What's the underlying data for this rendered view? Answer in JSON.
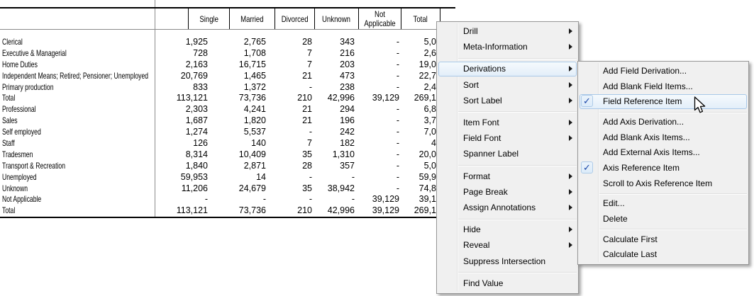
{
  "table": {
    "columns": [
      "Single",
      "Married",
      "Divorced",
      "Unknown",
      "Not Applicable",
      "Total"
    ],
    "rows": [
      {
        "label": "Clerical",
        "values": [
          "1,925",
          "2,765",
          "28",
          "343",
          "-",
          "5,0"
        ]
      },
      {
        "label": "Executive & Managerial",
        "values": [
          "728",
          "1,708",
          "7",
          "216",
          "-",
          "2,6"
        ]
      },
      {
        "label": "Home Duties",
        "values": [
          "2,163",
          "16,715",
          "7",
          "203",
          "-",
          "19,0"
        ]
      },
      {
        "label": "Independent Means; Retired; Pensioner; Unemployed",
        "values": [
          "20,769",
          "1,465",
          "21",
          "473",
          "-",
          "22,7"
        ]
      },
      {
        "label": "Primary production",
        "values": [
          "833",
          "1,372",
          "-",
          "238",
          "-",
          "2,4"
        ]
      },
      {
        "label": "Total",
        "values": [
          "113,121",
          "73,736",
          "210",
          "42,996",
          "39,129",
          "269,1"
        ]
      },
      {
        "label": "Professional",
        "values": [
          "2,303",
          "4,241",
          "21",
          "294",
          "-",
          "6,8"
        ]
      },
      {
        "label": "Sales",
        "values": [
          "1,687",
          "1,820",
          "21",
          "196",
          "-",
          "3,7"
        ]
      },
      {
        "label": "Self employed",
        "values": [
          "1,274",
          "5,537",
          "-",
          "242",
          "-",
          "7,0"
        ]
      },
      {
        "label": "Staff",
        "values": [
          "126",
          "140",
          "7",
          "182",
          "-",
          "4"
        ]
      },
      {
        "label": "Tradesmen",
        "values": [
          "8,314",
          "10,409",
          "35",
          "1,310",
          "-",
          "20,0"
        ]
      },
      {
        "label": "Transport & Recreation",
        "values": [
          "1,840",
          "2,871",
          "28",
          "357",
          "-",
          "5,0"
        ]
      },
      {
        "label": "Unemployed",
        "values": [
          "59,953",
          "14",
          "-",
          "-",
          "-",
          "59,9"
        ]
      },
      {
        "label": "Unknown",
        "values": [
          "11,206",
          "24,679",
          "35",
          "38,942",
          "-",
          "74,8"
        ]
      },
      {
        "label": "Not Applicable",
        "values": [
          "-",
          "-",
          "-",
          "-",
          "39,129",
          "39,1"
        ]
      },
      {
        "label": "Total",
        "values": [
          "113,121",
          "73,736",
          "210",
          "42,996",
          "39,129",
          "269,1"
        ]
      }
    ]
  },
  "context_menu": {
    "items": [
      {
        "label": "Drill",
        "submenu": true
      },
      {
        "label": "Meta-Information",
        "submenu": true
      },
      {
        "type": "separator"
      },
      {
        "label": "Derivations",
        "submenu": true,
        "highlighted": true
      },
      {
        "label": "Sort",
        "submenu": true
      },
      {
        "label": "Sort Label",
        "submenu": true
      },
      {
        "type": "separator"
      },
      {
        "label": "Item Font",
        "submenu": true
      },
      {
        "label": "Field Font",
        "submenu": true
      },
      {
        "label": "Spanner Label"
      },
      {
        "type": "separator"
      },
      {
        "label": "Format",
        "submenu": true
      },
      {
        "label": "Page Break",
        "submenu": true
      },
      {
        "label": "Assign Annotations",
        "submenu": true
      },
      {
        "type": "separator"
      },
      {
        "label": "Hide",
        "submenu": true
      },
      {
        "label": "Reveal",
        "submenu": true
      },
      {
        "label": "Suppress Intersection"
      },
      {
        "type": "separator"
      },
      {
        "label": "Find Value"
      }
    ]
  },
  "submenu": {
    "items": [
      {
        "label": "Add Field Derivation..."
      },
      {
        "label": "Add Blank Field Items..."
      },
      {
        "label": "Field Reference Item",
        "checked": true,
        "highlighted": true
      },
      {
        "type": "separator"
      },
      {
        "label": "Add Axis Derivation..."
      },
      {
        "label": "Add Blank Axis Items..."
      },
      {
        "label": "Add External Axis Items..."
      },
      {
        "label": "Axis Reference Item",
        "checked": true
      },
      {
        "label": "Scroll to Axis Reference Item"
      },
      {
        "type": "separator"
      },
      {
        "label": "Edit..."
      },
      {
        "label": "Delete"
      },
      {
        "type": "separator"
      },
      {
        "label": "Calculate First"
      },
      {
        "label": "Calculate Last"
      }
    ]
  },
  "icons": {
    "checkmark": "✓",
    "cursor": "mouse-cursor-icon",
    "submenu_arrow": "right-triangle"
  },
  "colors": {
    "menu_background": "#f0f0f0",
    "menu_border": "#979797",
    "highlight_border": "#a9c8e8",
    "highlight_fill": "#e3eef9",
    "checkmark_blue": "#1c47a8",
    "table_line_black": "#000000",
    "table_line_gray": "#8a8a8a"
  }
}
